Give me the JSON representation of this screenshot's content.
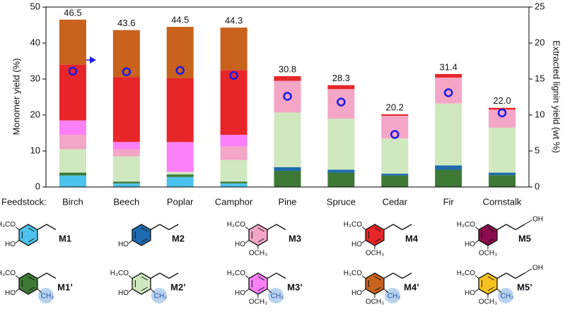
{
  "chart_data": {
    "type": "stacked-bar",
    "ylabel": "Monomer yield (%)",
    "y2label": "Extracted lignin yield (wt %)",
    "category_axis_label": "Feedstock:",
    "categories": [
      "Birch",
      "Beech",
      "Poplar",
      "Camphor",
      "Pine",
      "Spruce",
      "Cedar",
      "Fir",
      "Cornstalk"
    ],
    "series": [
      {
        "name": "M1",
        "color": "#4cc3ec",
        "values": [
          3.2,
          1.0,
          2.8,
          1.0,
          0,
          0,
          0,
          0,
          0
        ]
      },
      {
        "name": "M1’",
        "color": "#3e7a36",
        "values": [
          0.8,
          0.5,
          0.7,
          0.5,
          4.5,
          4.0,
          3.2,
          4.8,
          3.3
        ]
      },
      {
        "name": "M2",
        "color": "#1d6bb0",
        "values": [
          0,
          0,
          0,
          0,
          1.0,
          0.8,
          0.5,
          1.2,
          0.7
        ]
      },
      {
        "name": "M2’",
        "color": "#cfe8c0",
        "values": [
          6.5,
          7.0,
          0.7,
          6.0,
          15.2,
          14.2,
          9.8,
          17.2,
          12.5
        ]
      },
      {
        "name": "M3",
        "color": "#f4a6c6",
        "values": [
          4.0,
          2.0,
          0,
          3.8,
          8.8,
          8.2,
          6.3,
          7.2,
          5.0
        ]
      },
      {
        "name": "M3’",
        "color": "#fb7ff7",
        "values": [
          4.0,
          2.0,
          8.3,
          3.2,
          0,
          0,
          0,
          0,
          0
        ]
      },
      {
        "name": "M4",
        "color": "#e8262a",
        "values": [
          15.5,
          18.0,
          17.7,
          18.0,
          1.3,
          1.1,
          0.4,
          1.0,
          0.5
        ]
      },
      {
        "name": "M4’",
        "color": "#c8621c",
        "values": [
          12.5,
          13.1,
          14.3,
          11.8,
          0,
          0,
          0,
          0,
          0
        ]
      },
      {
        "name": "M5",
        "color": "#8a0c4c",
        "values": [
          0,
          0,
          0,
          0,
          0,
          0,
          0,
          0,
          0
        ]
      },
      {
        "name": "M5’",
        "color": "#f6c21e",
        "values": [
          0,
          0,
          0,
          0,
          0,
          0,
          0,
          0,
          0
        ]
      }
    ],
    "totals": {
      "values": [
        46.5,
        43.6,
        44.5,
        44.3,
        30.8,
        28.3,
        20.2,
        31.4,
        22.0
      ],
      "value_labels": [
        "46.5",
        "43.6",
        "44.5",
        "44.3",
        "30.8",
        "28.3",
        "20.2",
        "31.4",
        "22.0"
      ]
    },
    "lignin_yield": {
      "axis": "y2",
      "color": "#1a1ae6",
      "values": [
        16.1,
        16.0,
        16.2,
        15.5,
        12.6,
        11.8,
        7.3,
        13.1,
        10.3
      ]
    },
    "ylim": [
      0,
      50
    ],
    "yticks": [
      0,
      10,
      20,
      30,
      40,
      50
    ],
    "y2lim": [
      0,
      25
    ],
    "y2ticks": [
      0,
      5,
      10,
      15,
      20,
      25
    ]
  },
  "structures": [
    {
      "groups": [
        "H₃CO",
        "HO"
      ]
    },
    {
      "groups": [
        "H₃CO",
        "HO",
        "CH₃"
      ]
    },
    {
      "groups": [
        "HO"
      ]
    },
    {
      "groups": [
        "H₃CO",
        "HO",
        "CH₃"
      ]
    },
    {
      "groups": [
        "H₃CO",
        "HO",
        "OCH₃"
      ]
    },
    {
      "groups": [
        "H₃CO",
        "HO",
        "OCH₃",
        "CH₃"
      ]
    },
    {
      "groups": [
        "H₃CO",
        "HO",
        "OCH₃"
      ]
    },
    {
      "groups": [
        "H₃CO",
        "HO",
        "OCH₃",
        "CH₃"
      ]
    },
    {
      "groups": [
        "H₃CO",
        "HO",
        "OCH₃",
        "OH"
      ]
    },
    {
      "groups": [
        "H₃CO",
        "HO",
        "OCH₃",
        "OH",
        "CH₃"
      ]
    }
  ]
}
